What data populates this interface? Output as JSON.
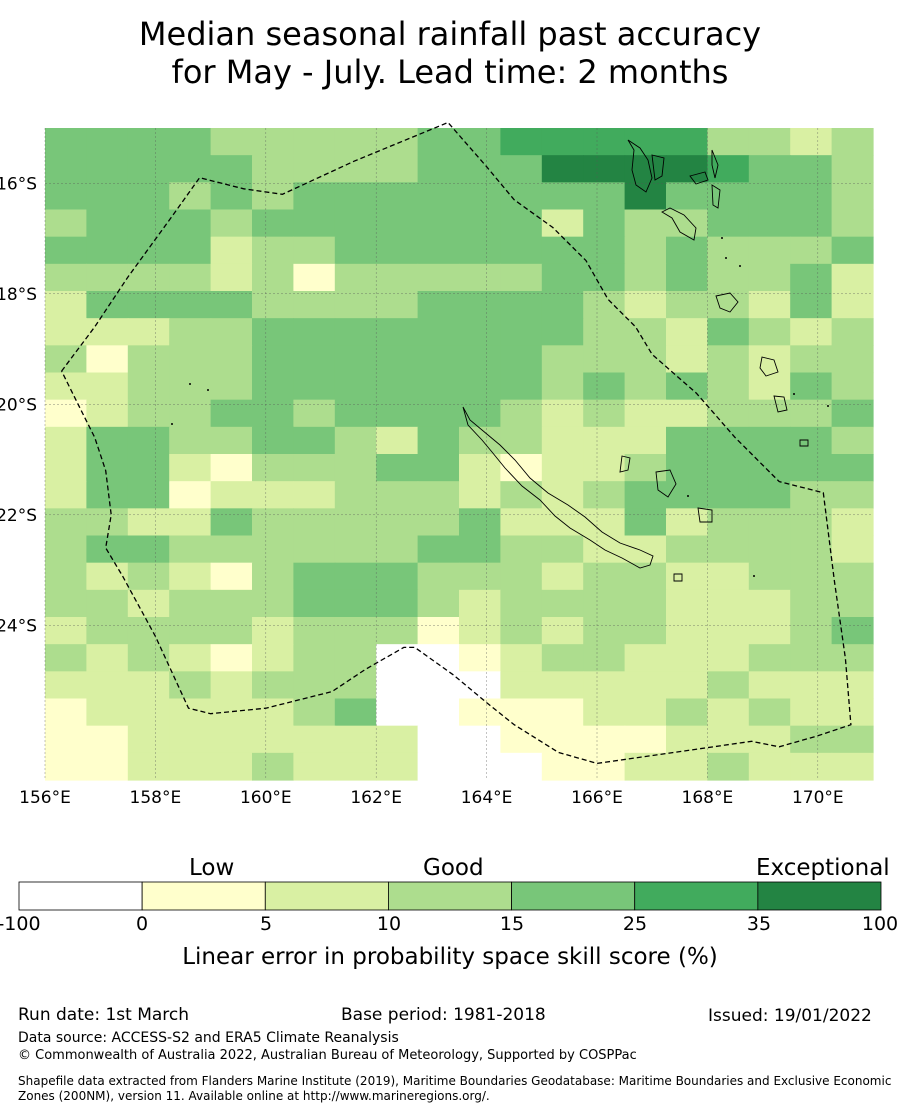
{
  "title": {
    "line1": "Median seasonal rainfall past accuracy",
    "line2": "for May - July. Lead time: 2 months"
  },
  "map": {
    "lon_range": [
      156,
      171
    ],
    "lat_range": [
      -26.8,
      -15
    ],
    "lon_ticks": [
      156,
      158,
      160,
      162,
      164,
      166,
      168,
      170
    ],
    "lat_ticks": [
      -16,
      -18,
      -20,
      -22,
      -24
    ],
    "lon_tick_labels": [
      "156°E",
      "158°E",
      "160°E",
      "162°E",
      "164°E",
      "166°E",
      "168°E",
      "170°E"
    ],
    "lat_tick_labels": [
      "16°S",
      "18°S",
      "20°S",
      "22°S",
      "24°S"
    ],
    "cell_deg_lon": 0.833,
    "cell_deg_lat": 0.555,
    "category_colors": [
      "#ffffff",
      "#ffffcc",
      "#d9f0a3",
      "#addd8e",
      "#78c679",
      "#41ab5d",
      "#238443"
    ],
    "grid_categories": [
      "44443333344555553323",
      "44444333344466665443",
      "44434344444444644443",
      "34443444444424334443",
      "44442334444444343334",
      "33332313333344343342",
      "24444333344443233242",
      "22233444444443324323",
      "31333444444433323233",
      "22333444444434343243",
      "12334434444323223334",
      "24433443243322244443",
      "24421333442122344444",
      "24412223332323444433",
      "33224333334222423332",
      "34433333344332233332",
      "32321344433323322333",
      "33233344432333322233",
      "23333233312323322234",
      "32321233001233222333",
      "22232333000222223222",
      "12222234001112232322",
      "11222222200111122233",
      "11222322200011223222"
    ],
    "eez_boundary": [
      [
        156.3,
        -19.4
      ],
      [
        156.9,
        -18.6
      ],
      [
        157.5,
        -17.7
      ],
      [
        158.3,
        -16.6
      ],
      [
        158.8,
        -15.9
      ],
      [
        159.6,
        -16.1
      ],
      [
        160.3,
        -16.2
      ],
      [
        161.6,
        -15.6
      ],
      [
        163.3,
        -14.9
      ],
      [
        164.0,
        -15.7
      ],
      [
        164.5,
        -16.3
      ],
      [
        165.2,
        -16.8
      ],
      [
        165.8,
        -17.4
      ],
      [
        166.2,
        -18.1
      ],
      [
        166.7,
        -18.6
      ],
      [
        167.0,
        -19.1
      ],
      [
        167.8,
        -19.8
      ],
      [
        168.5,
        -20.6
      ],
      [
        169.3,
        -21.4
      ],
      [
        170.1,
        -21.6
      ],
      [
        170.3,
        -23.2
      ],
      [
        170.5,
        -24.6
      ],
      [
        170.6,
        -25.8
      ],
      [
        170.0,
        -26.0
      ],
      [
        169.3,
        -26.2
      ],
      [
        168.8,
        -26.1
      ],
      [
        167.4,
        -26.3
      ],
      [
        166.0,
        -26.5
      ],
      [
        165.3,
        -26.3
      ],
      [
        164.5,
        -25.8
      ],
      [
        164.0,
        -25.4
      ],
      [
        163.4,
        -24.9
      ],
      [
        162.7,
        -24.4
      ],
      [
        162.5,
        -24.4
      ],
      [
        161.8,
        -24.8
      ],
      [
        161.2,
        -25.2
      ],
      [
        160.0,
        -25.5
      ],
      [
        159.0,
        -25.6
      ],
      [
        158.6,
        -25.5
      ],
      [
        158.0,
        -24.2
      ],
      [
        157.4,
        -23.1
      ],
      [
        157.1,
        -22.6
      ],
      [
        157.2,
        -22.0
      ],
      [
        157.1,
        -21.2
      ],
      [
        156.9,
        -20.6
      ],
      [
        156.6,
        -20.0
      ],
      [
        156.3,
        -19.4
      ]
    ]
  },
  "colorbar": {
    "category_heads": [
      "Low",
      "Good",
      "Exceptional"
    ],
    "ticks": [
      "-100",
      "0",
      "5",
      "10",
      "15",
      "25",
      "35",
      "100"
    ],
    "label": "Linear error in probability space skill score (%)"
  },
  "footer": {
    "run_date": "Run date: 1st March",
    "base_period": "Base period: 1981-2018",
    "issued": "Issued: 19/01/2022",
    "data_source": "Data source: ACCESS-S2 and ERA5 Climate Reanalysis",
    "copyright": "© Commonwealth of Australia 2022, Australian Bureau of Meteorology, Supported by COSPPac",
    "shapefile_line1": "Shapefile data extracted from Flanders Marine Institute (2019), Maritime Boundaries Geodatabase: Maritime Boundaries and Exclusive Economic",
    "shapefile_line2": "Zones (200NM), version 11. Available online at http://www.marineregions.org/."
  }
}
